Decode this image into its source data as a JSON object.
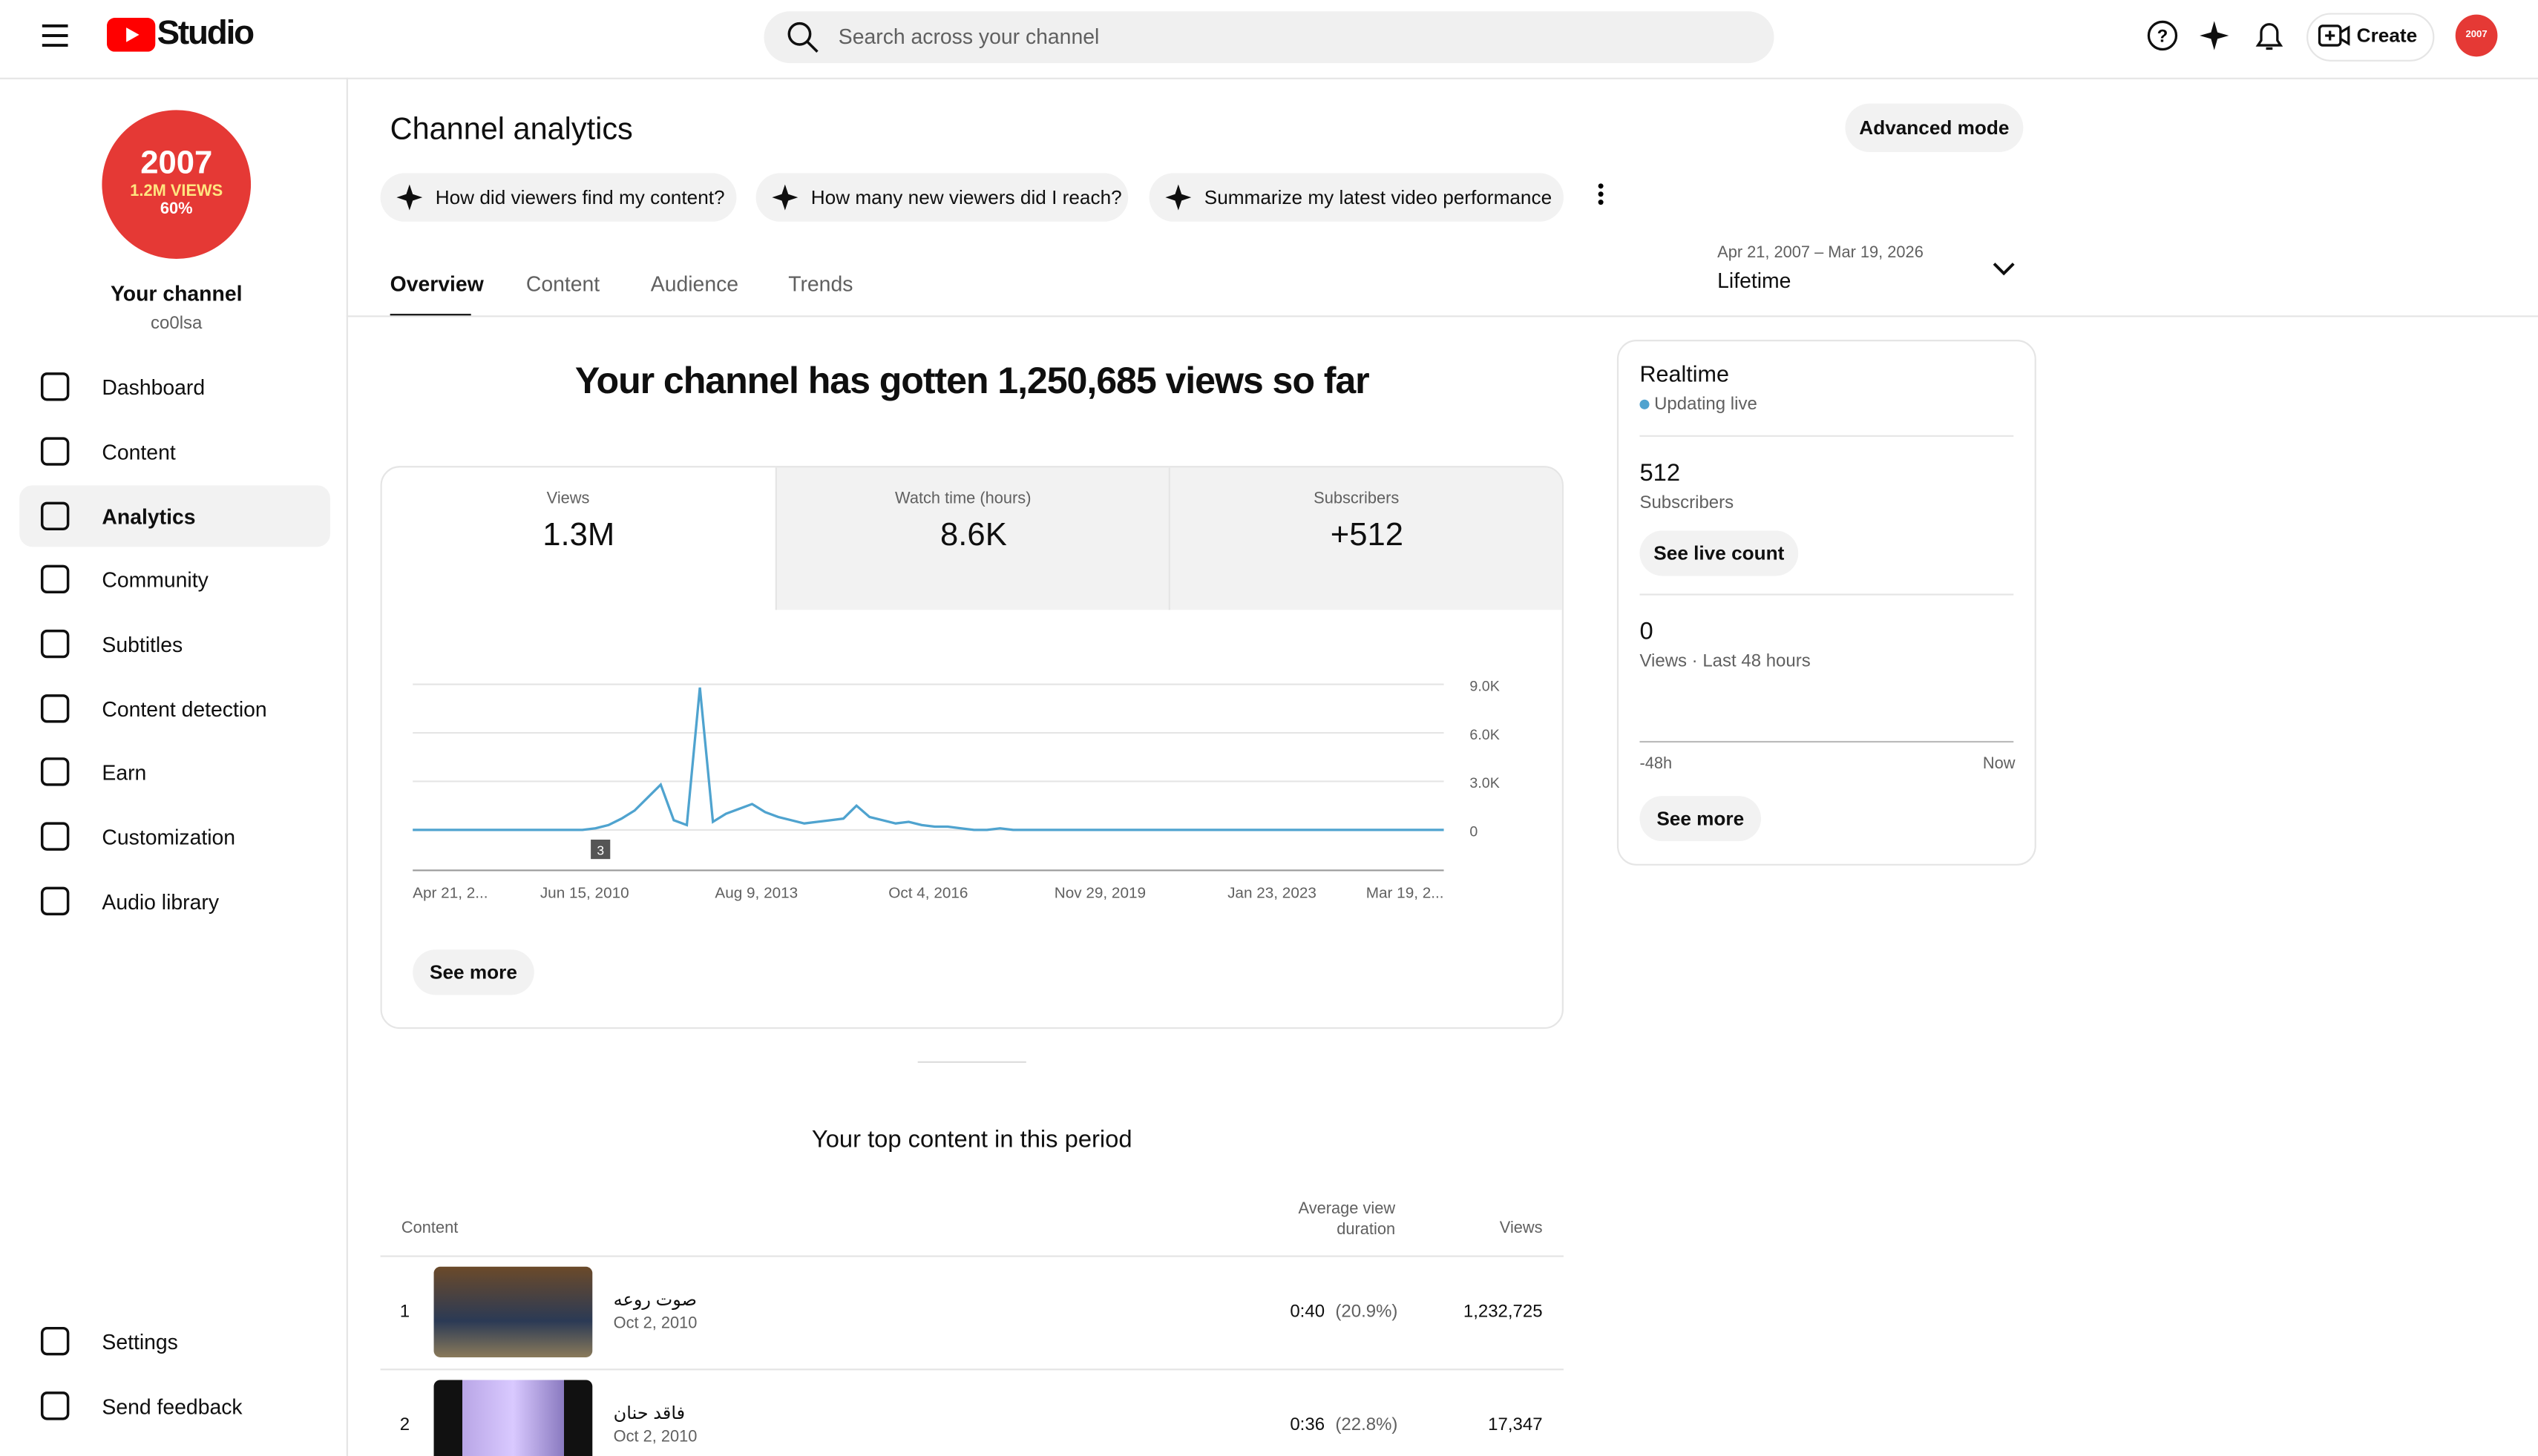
{
  "header": {
    "logo": "Studio",
    "search_placeholder": "Search across your channel",
    "create": "Create",
    "avatar_text": "2007"
  },
  "sidebar": {
    "badge": {
      "year": "2007",
      "views": "1.2M VIEWS",
      "pct": "60%"
    },
    "channel_name": "Your channel",
    "handle": "co0lsa",
    "nav": [
      "Dashboard",
      "Content",
      "Analytics",
      "Community",
      "Subtitles",
      "Content detection",
      "Earn",
      "Customization",
      "Audio library"
    ],
    "bottom_nav": [
      "Settings",
      "Send feedback"
    ]
  },
  "page": {
    "title": "Channel analytics",
    "advanced": "Advanced mode",
    "prompts": [
      "How did viewers find my content?",
      "How many new viewers did I reach?",
      "Summarize my latest video performance"
    ],
    "tabs": [
      "Overview",
      "Content",
      "Audience",
      "Trends"
    ],
    "date_range": "Apr 21, 2007 – Mar 19, 2026",
    "period": "Lifetime"
  },
  "summary": "Your channel has gotten 1,250,685 views so far",
  "metrics": [
    {
      "label": "Views",
      "value": "1.3M"
    },
    {
      "label": "Watch time (hours)",
      "value": "8.6K"
    },
    {
      "label": "Subscribers",
      "value": "+512"
    }
  ],
  "chart": {
    "type": "line",
    "color": "#4fa3cf",
    "x_labels": [
      "Apr 21, 2...",
      "Jun 15, 2010",
      "Aug 9, 2013",
      "Oct 4, 2016",
      "Nov 29, 2019",
      "Jan 23, 2023",
      "Mar 19, 2..."
    ],
    "ylim": [
      0,
      10000
    ],
    "yticks": [
      {
        "value": 9000,
        "label": "9.0K"
      },
      {
        "value": 6000,
        "label": "6.0K"
      },
      {
        "value": 3000,
        "label": "3.0K"
      },
      0
    ],
    "marker": "3",
    "values": [
      0,
      0,
      0,
      0,
      0,
      0,
      0,
      0,
      0,
      0,
      0,
      0,
      0,
      0,
      100,
      300,
      700,
      1200,
      2000,
      2800,
      600,
      300,
      8800,
      500,
      1000,
      1300,
      1600,
      1100,
      800,
      600,
      400,
      500,
      600,
      700,
      1500,
      800,
      600,
      400,
      500,
      300,
      200,
      200,
      100,
      0,
      0,
      100,
      0,
      0,
      0,
      0,
      0,
      0,
      0,
      0,
      0,
      0,
      0,
      0,
      0,
      0,
      0,
      0,
      0,
      0,
      0,
      0,
      0,
      0,
      0,
      0,
      0,
      0,
      0,
      0,
      0,
      0,
      0,
      0,
      0,
      0
    ]
  },
  "see_more": "See more",
  "realtime": {
    "title": "Realtime",
    "status": "Updating live",
    "subs": "512",
    "subs_label": "Subscribers",
    "live_count": "See live count",
    "views": "0",
    "views_label": "Views · Last 48 hours",
    "start": "-48h",
    "end": "Now",
    "see_more": "See more"
  },
  "top_content": {
    "title": "Your top content in this period",
    "columns": [
      "Content",
      "Average view duration",
      "Views"
    ],
    "rows": [
      {
        "rank": "1",
        "title": "صوت روعه",
        "date": "Oct 2, 2010",
        "avg": "0:40",
        "pct": "(20.9%)",
        "views": "1,232,725"
      },
      {
        "rank": "2",
        "title": "فاقد حنان",
        "date": "Oct 2, 2010",
        "avg": "0:36",
        "pct": "(22.8%)",
        "views": "17,347"
      }
    ]
  }
}
